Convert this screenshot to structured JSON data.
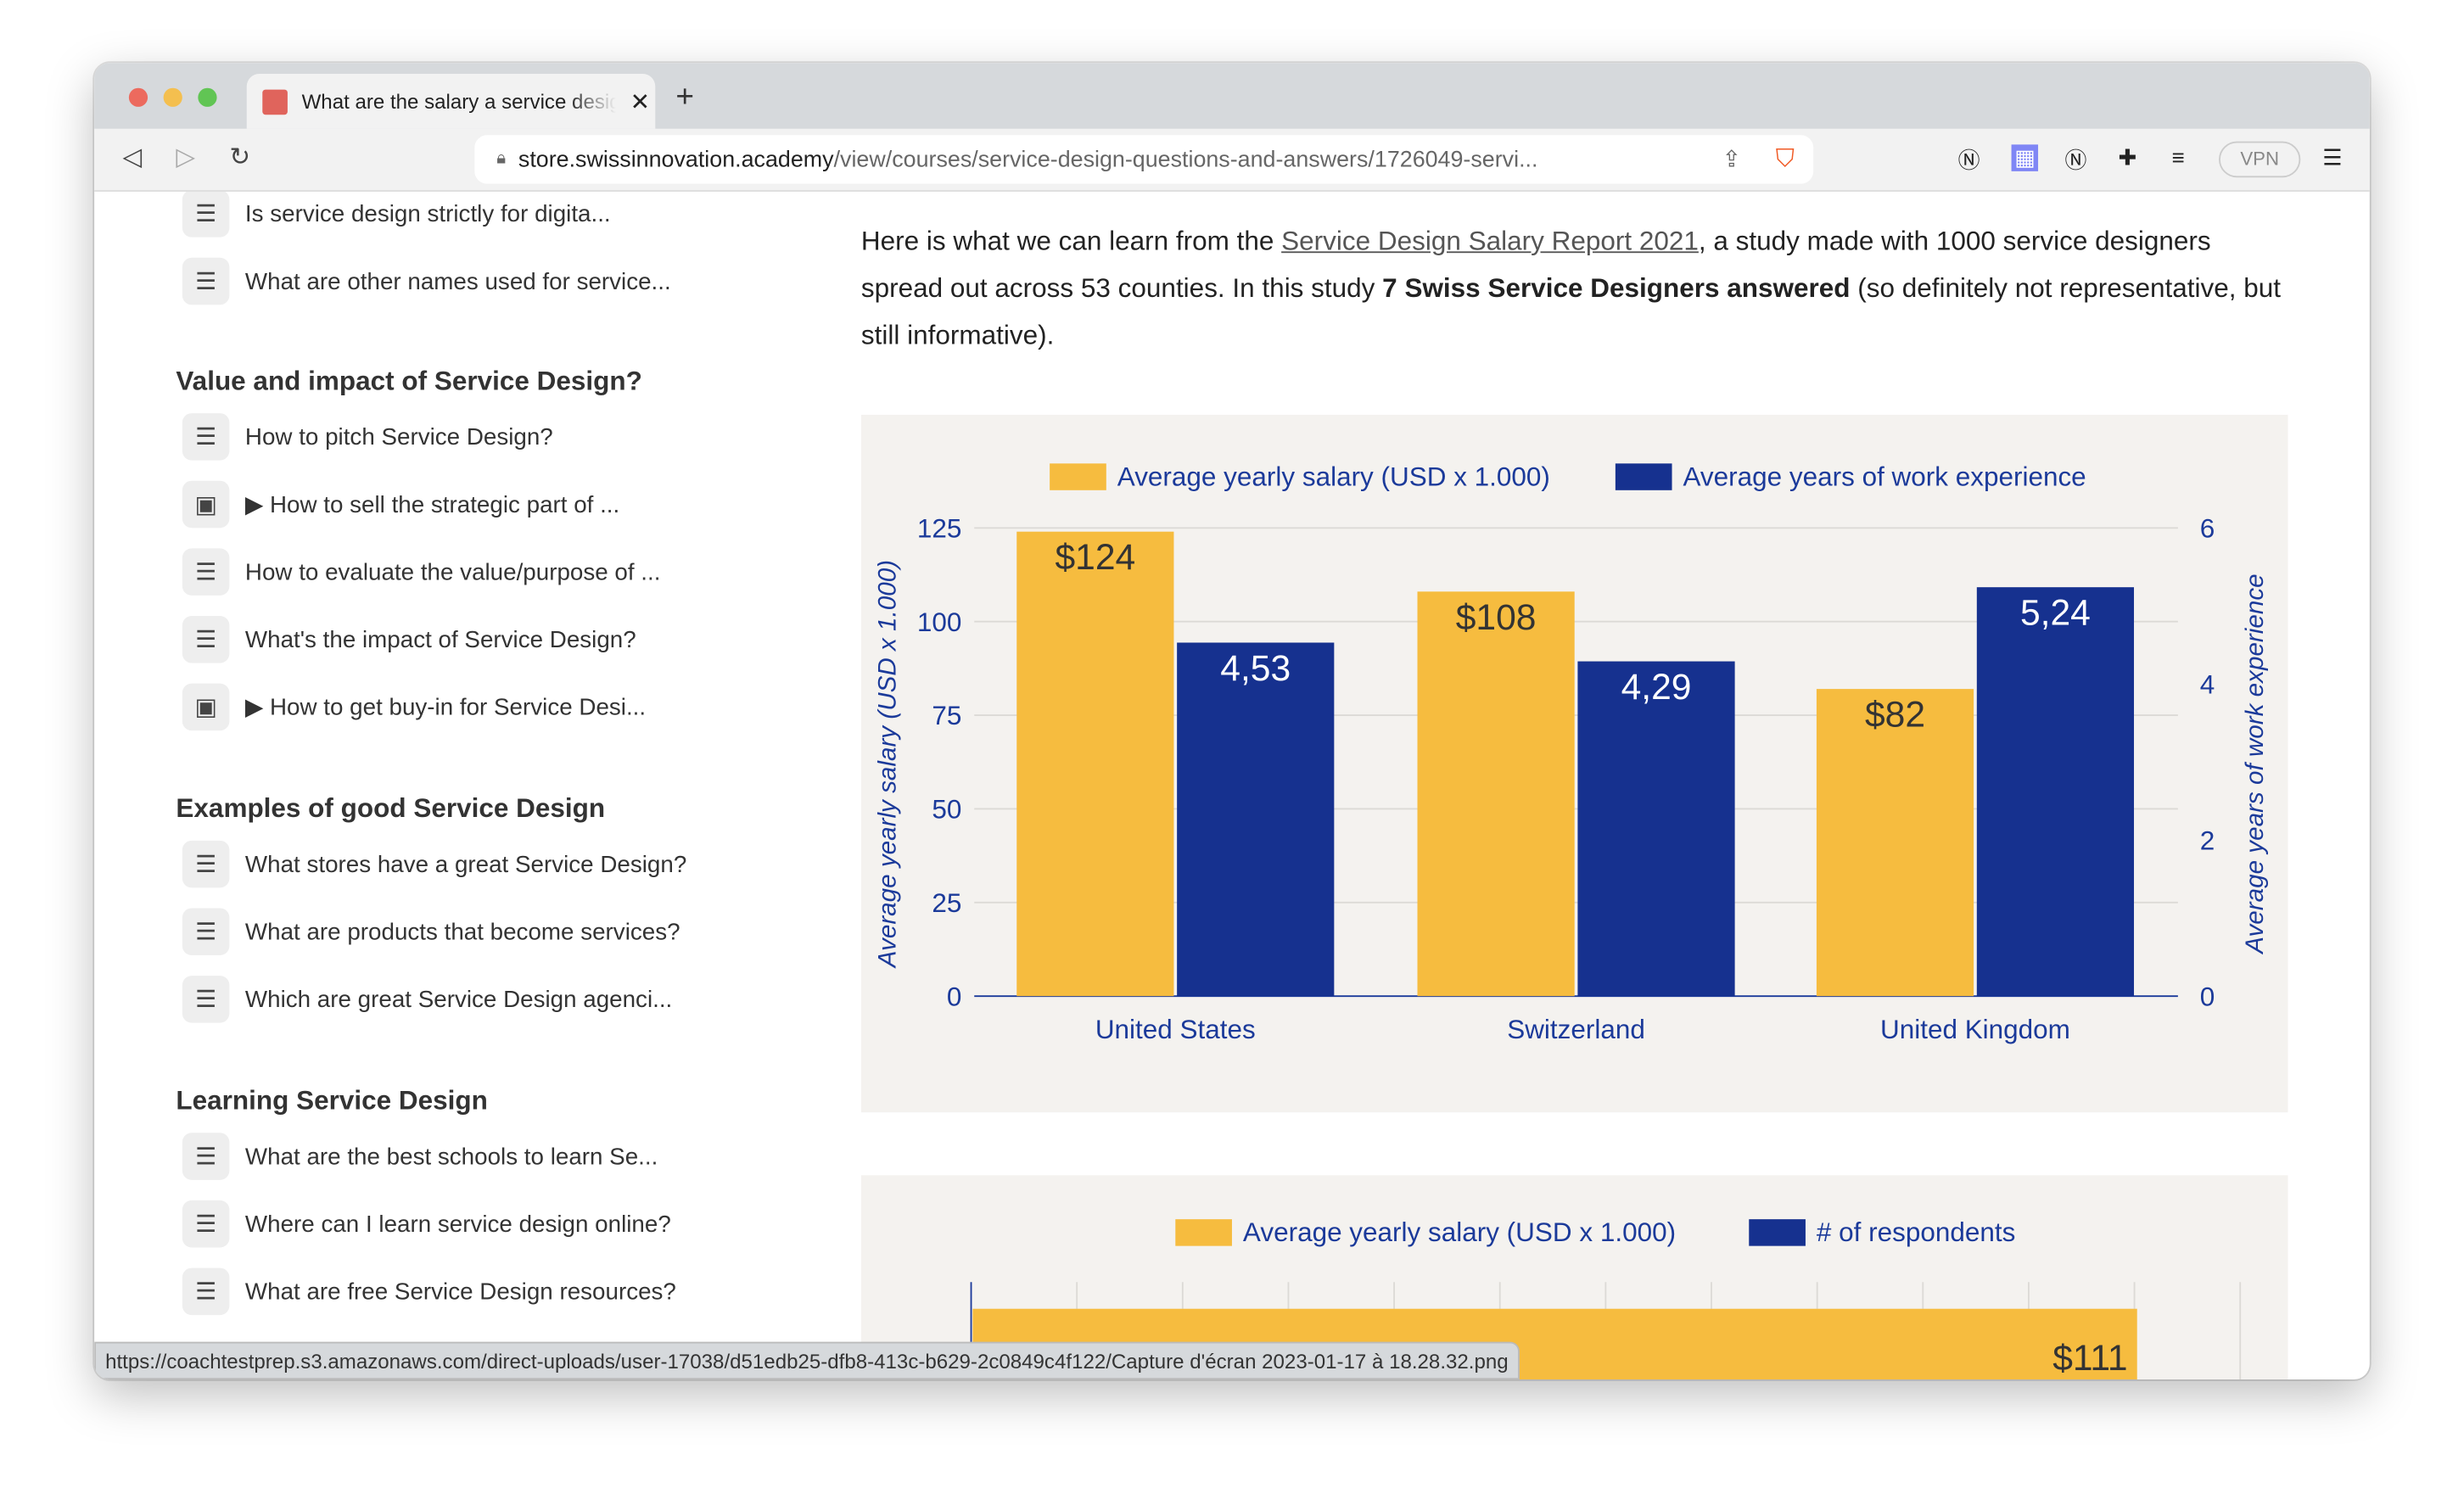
{
  "browser": {
    "tab_title": "What are the salary a service designer",
    "url_host": "store.swissinnovation.academy",
    "url_path": "/view/courses/service-design-questions-and-answers/1726049-servi...",
    "vpn_label": "VPN",
    "status_url": "https://coachtestprep.s3.amazonaws.com/direct-uploads/user-17038/d51edb25-dfb8-413c-b629-2c0849c4f122/Capture d'écran 2023-01-17 à 18.28.32.png"
  },
  "sidebar": {
    "top_items": [
      {
        "label": "Is service design strictly for digita...",
        "icon": "list-icon"
      },
      {
        "label": "What are other names used for service...",
        "icon": "list-icon"
      }
    ],
    "sections": [
      {
        "title": "Value and impact of Service Design?",
        "items": [
          {
            "label": "How to pitch Service Design?",
            "icon": "list-icon"
          },
          {
            "label": "▶ How to sell the strategic part of ...",
            "icon": "video-icon"
          },
          {
            "label": "How to evaluate the value/purpose of ...",
            "icon": "list-icon"
          },
          {
            "label": "What's the impact of Service Design?",
            "icon": "list-icon"
          },
          {
            "label": "▶ How to get buy-in for Service Desi...",
            "icon": "video-icon"
          }
        ]
      },
      {
        "title": "Examples of good Service Design",
        "items": [
          {
            "label": "What stores have a great Service Design?",
            "icon": "list-icon"
          },
          {
            "label": "What are products that become services?",
            "icon": "list-icon"
          },
          {
            "label": "Which are great Service Design agenci...",
            "icon": "list-icon"
          }
        ]
      },
      {
        "title": "Learning Service Design",
        "items": [
          {
            "label": "What are the best schools to learn Se...",
            "icon": "list-icon"
          },
          {
            "label": "Where can I learn service design online?",
            "icon": "list-icon"
          },
          {
            "label": "What are free Service Design resources?",
            "icon": "list-icon"
          }
        ]
      }
    ]
  },
  "main": {
    "intro_1": "Here is what we can learn from the ",
    "link": "Service Design Salary Report 2021",
    "intro_2": ", a study made with 1000 service designers spread out across 53 counties. In this study ",
    "bold": "7 Swiss Service Designers answered",
    "intro_3": " (so definitely not representative, but still informative)."
  },
  "chart_data": [
    {
      "type": "bar",
      "categories": [
        "United States",
        "Switzerland",
        "United Kingdom"
      ],
      "series": [
        {
          "name": "Average yearly salary (USD x 1.000)",
          "values": [
            124,
            108,
            82
          ],
          "labels": [
            "$124",
            "$108",
            "$82"
          ],
          "axis": "left",
          "color": "#f6bc3f"
        },
        {
          "name": "Average years of work experience",
          "values": [
            4.53,
            4.29,
            5.24
          ],
          "labels": [
            "4,53",
            "4,29",
            "5,24"
          ],
          "axis": "right",
          "color": "#16318f"
        }
      ],
      "ylabel": "Average yearly salary (USD x 1.000)",
      "y2label": "Average years of work experience",
      "ylim": [
        0,
        125
      ],
      "yticks": [
        "0",
        "25",
        "50",
        "75",
        "100",
        "125"
      ],
      "y2lim": [
        0,
        6
      ],
      "y2ticks": [
        "0",
        "2",
        "4",
        "6"
      ],
      "grid": true,
      "legend": "top"
    },
    {
      "type": "bar",
      "orientation": "horizontal",
      "legend": [
        "Average yearly salary (USD x 1.000)",
        "# of respondents"
      ],
      "colors": [
        "#f6bc3f",
        "#16318f"
      ],
      "visible_values": [
        111
      ],
      "visible_labels": [
        "$111"
      ]
    }
  ]
}
